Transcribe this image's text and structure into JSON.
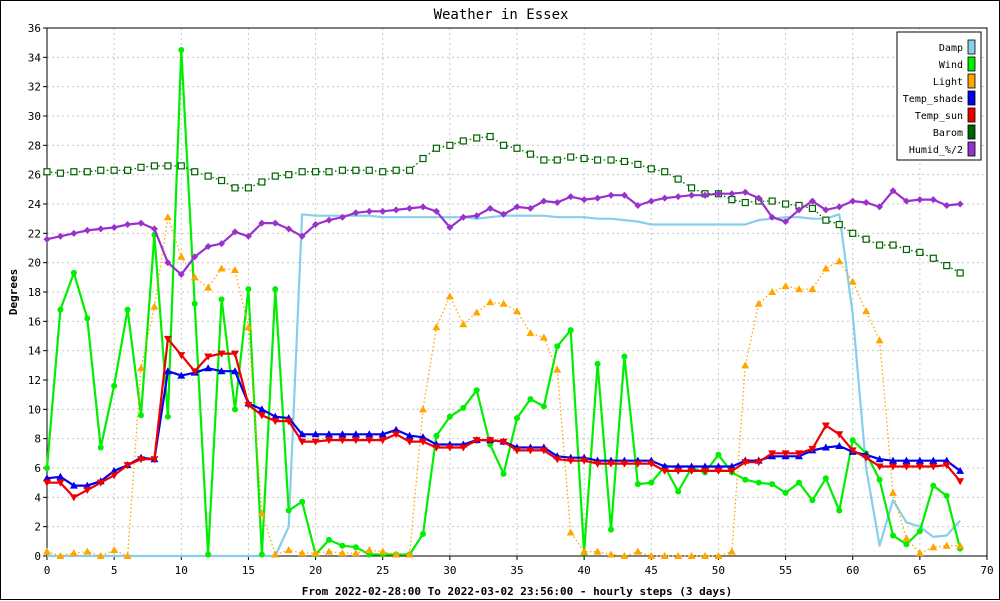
{
  "chart_data": {
    "type": "line",
    "title": "Weather in Essex",
    "xlabel": "From 2022-02-28:00 To 2022-03-02 23:56:00 - hourly steps (3 days)",
    "ylabel": "Degrees",
    "xlim": [
      0,
      70
    ],
    "ylim": [
      0,
      36
    ],
    "xticks": [
      0,
      5,
      10,
      15,
      20,
      25,
      30,
      35,
      40,
      45,
      50,
      55,
      60,
      65,
      70
    ],
    "yticks": [
      0,
      2,
      4,
      6,
      8,
      10,
      12,
      14,
      16,
      18,
      20,
      22,
      24,
      26,
      28,
      30,
      32,
      34,
      36
    ],
    "xtick_labels": [
      "0",
      "5",
      "10",
      "15",
      "20",
      "25",
      "30",
      "35",
      "40",
      "45",
      "50",
      "55",
      "60",
      "65",
      "70"
    ],
    "ytick_labels": [
      "0",
      "2",
      "4",
      "6",
      "8",
      "10",
      "12",
      "14",
      "16",
      "18",
      "20",
      "22",
      "24",
      "26",
      "28",
      "30",
      "32",
      "34",
      "36"
    ],
    "grid": true,
    "legend_position": "top-right",
    "series": [
      {
        "name": "Damp",
        "color": "#87ceeb",
        "style": "solid",
        "marker": "none",
        "x": [
          0,
          1,
          2,
          3,
          4,
          5,
          6,
          7,
          8,
          9,
          10,
          11,
          12,
          13,
          14,
          15,
          16,
          17,
          18,
          19,
          20,
          21,
          22,
          23,
          24,
          25,
          26,
          27,
          28,
          29,
          30,
          31,
          32,
          33,
          34,
          35,
          36,
          37,
          38,
          39,
          40,
          41,
          42,
          43,
          44,
          45,
          46,
          47,
          48,
          49,
          50,
          51,
          52,
          53,
          54,
          55,
          56,
          57,
          58,
          59,
          60,
          61,
          62,
          63,
          64,
          65,
          66,
          67,
          68
        ],
        "y": [
          0,
          0,
          0,
          0,
          0,
          0,
          0,
          0,
          0,
          0,
          0,
          0,
          0,
          0,
          0,
          0,
          0,
          0,
          2.0,
          23.3,
          23.2,
          23.2,
          23.2,
          23.2,
          23.2,
          23.1,
          23.1,
          23.1,
          23.1,
          23.1,
          23.1,
          23.1,
          23.0,
          23.1,
          23.2,
          23.2,
          23.2,
          23.2,
          23.1,
          23.1,
          23.1,
          23.0,
          23.0,
          22.9,
          22.8,
          22.6,
          22.6,
          22.6,
          22.6,
          22.6,
          22.6,
          22.6,
          22.6,
          22.9,
          23.0,
          23.1,
          23.1,
          23.0,
          23.0,
          23.3,
          16.5,
          6.0,
          0.7,
          3.8,
          2.3,
          2.0,
          1.3,
          1.4,
          2.4
        ]
      },
      {
        "name": "Wind",
        "color": "#00ee00",
        "style": "solid",
        "marker": "circle",
        "x": [
          0,
          1,
          2,
          3,
          4,
          5,
          6,
          7,
          8,
          9,
          10,
          11,
          12,
          13,
          14,
          15,
          16,
          17,
          18,
          19,
          20,
          21,
          22,
          23,
          24,
          25,
          26,
          27,
          28,
          29,
          30,
          31,
          32,
          33,
          34,
          35,
          36,
          37,
          38,
          39,
          40,
          41,
          42,
          43,
          44,
          45,
          46,
          47,
          48,
          49,
          50,
          51,
          52,
          53,
          54,
          55,
          56,
          57,
          58,
          59,
          60,
          61,
          62,
          63,
          64,
          65,
          66,
          67,
          68
        ],
        "y": [
          6.0,
          16.8,
          19.3,
          16.2,
          7.4,
          11.6,
          16.8,
          9.6,
          21.9,
          9.5,
          34.5,
          17.2,
          0.1,
          17.5,
          10.0,
          18.2,
          0.1,
          18.2,
          3.1,
          3.7,
          0.1,
          1.1,
          0.7,
          0.6,
          0.1,
          0.1,
          0.1,
          0.1,
          1.5,
          8.2,
          9.5,
          10.1,
          11.3,
          7.6,
          5.6,
          9.4,
          10.7,
          10.2,
          14.3,
          15.4,
          0.2,
          13.1,
          1.8,
          13.6,
          4.9,
          5.0,
          6.1,
          4.4,
          6.0,
          5.7,
          6.9,
          5.7,
          5.2,
          5.0,
          4.9,
          4.3,
          5.0,
          3.8,
          5.3,
          3.1,
          7.9,
          7.0,
          5.2,
          1.4,
          0.8,
          1.7,
          4.8,
          4.1,
          0.5
        ]
      },
      {
        "name": "Light",
        "color": "#ffa500",
        "style": "dotted",
        "marker": "triangle",
        "x": [
          0,
          1,
          2,
          3,
          4,
          5,
          6,
          7,
          8,
          9,
          10,
          11,
          12,
          13,
          14,
          15,
          16,
          17,
          18,
          19,
          20,
          21,
          22,
          23,
          24,
          25,
          26,
          27,
          28,
          29,
          30,
          31,
          32,
          33,
          34,
          35,
          36,
          37,
          38,
          39,
          40,
          41,
          42,
          43,
          44,
          45,
          46,
          47,
          48,
          49,
          50,
          51,
          52,
          53,
          54,
          55,
          56,
          57,
          58,
          59,
          60,
          61,
          62,
          63,
          64,
          65,
          66,
          67,
          68
        ],
        "y": [
          0.3,
          0.0,
          0.2,
          0.3,
          0.0,
          0.4,
          0.0,
          12.8,
          17.0,
          23.1,
          20.4,
          19.0,
          18.3,
          19.6,
          19.5,
          15.6,
          2.9,
          0.1,
          0.4,
          0.2,
          0.2,
          0.3,
          0.2,
          0.2,
          0.4,
          0.3,
          0.1,
          0.1,
          10.0,
          15.6,
          17.7,
          15.8,
          16.6,
          17.3,
          17.2,
          16.7,
          15.2,
          14.9,
          12.7,
          1.6,
          0.3,
          0.3,
          0.1,
          0.0,
          0.3,
          0.0,
          0.0,
          0.0,
          0.0,
          0.0,
          0.0,
          0.3,
          13.0,
          17.2,
          18.0,
          18.4,
          18.2,
          18.2,
          19.6,
          20.1,
          18.7,
          16.7,
          14.7,
          4.3,
          1.2,
          0.2,
          0.6,
          0.7,
          0.7
        ]
      },
      {
        "name": "Temp_shade",
        "color": "#0000ee",
        "style": "solid",
        "marker": "triangle",
        "x": [
          0,
          1,
          2,
          3,
          4,
          5,
          6,
          7,
          8,
          9,
          10,
          11,
          12,
          13,
          14,
          15,
          16,
          17,
          18,
          19,
          20,
          21,
          22,
          23,
          24,
          25,
          26,
          27,
          28,
          29,
          30,
          31,
          32,
          33,
          34,
          35,
          36,
          37,
          38,
          39,
          40,
          41,
          42,
          43,
          44,
          45,
          46,
          47,
          48,
          49,
          50,
          51,
          52,
          53,
          54,
          55,
          56,
          57,
          58,
          59,
          60,
          61,
          62,
          63,
          64,
          65,
          66,
          67,
          68
        ],
        "y": [
          5.3,
          5.4,
          4.8,
          4.8,
          5.1,
          5.8,
          6.2,
          6.7,
          6.6,
          12.6,
          12.3,
          12.5,
          12.8,
          12.6,
          12.6,
          10.4,
          10.0,
          9.5,
          9.4,
          8.3,
          8.3,
          8.3,
          8.3,
          8.3,
          8.3,
          8.3,
          8.6,
          8.2,
          8.1,
          7.6,
          7.6,
          7.6,
          7.9,
          7.9,
          7.8,
          7.4,
          7.4,
          7.4,
          6.8,
          6.7,
          6.7,
          6.5,
          6.5,
          6.5,
          6.5,
          6.5,
          6.1,
          6.1,
          6.1,
          6.1,
          6.1,
          6.1,
          6.5,
          6.5,
          6.8,
          6.8,
          6.8,
          7.2,
          7.4,
          7.5,
          7.1,
          6.9,
          6.6,
          6.5,
          6.5,
          6.5,
          6.5,
          6.5,
          5.8
        ]
      },
      {
        "name": "Temp_sun",
        "color": "#ee0000",
        "style": "solid",
        "marker": "triangle-down",
        "x": [
          0,
          1,
          2,
          3,
          4,
          5,
          6,
          7,
          8,
          9,
          10,
          11,
          12,
          13,
          14,
          15,
          16,
          17,
          18,
          19,
          20,
          21,
          22,
          23,
          24,
          25,
          26,
          27,
          28,
          29,
          30,
          31,
          32,
          33,
          34,
          35,
          36,
          37,
          38,
          39,
          40,
          41,
          42,
          43,
          44,
          45,
          46,
          47,
          48,
          49,
          50,
          51,
          52,
          53,
          54,
          55,
          56,
          57,
          58,
          59,
          60,
          61,
          62,
          63,
          64,
          65,
          66,
          67,
          68
        ],
        "y": [
          5.0,
          5.0,
          4.0,
          4.5,
          5.0,
          5.5,
          6.2,
          6.6,
          6.6,
          14.8,
          13.7,
          12.6,
          13.6,
          13.8,
          13.8,
          10.3,
          9.6,
          9.2,
          9.2,
          7.8,
          7.8,
          7.9,
          7.9,
          7.9,
          7.9,
          7.9,
          8.3,
          7.8,
          7.8,
          7.4,
          7.4,
          7.4,
          7.9,
          7.9,
          7.8,
          7.2,
          7.2,
          7.2,
          6.6,
          6.5,
          6.5,
          6.3,
          6.3,
          6.3,
          6.3,
          6.3,
          5.8,
          5.8,
          5.8,
          5.8,
          5.8,
          5.8,
          6.4,
          6.4,
          7.0,
          7.0,
          7.0,
          7.3,
          8.9,
          8.3,
          7.2,
          6.7,
          6.1,
          6.1,
          6.1,
          6.1,
          6.1,
          6.2,
          5.1
        ]
      },
      {
        "name": "Barom",
        "color": "#006400",
        "style": "dotted",
        "marker": "square",
        "x": [
          0,
          1,
          2,
          3,
          4,
          5,
          6,
          7,
          8,
          9,
          10,
          11,
          12,
          13,
          14,
          15,
          16,
          17,
          18,
          19,
          20,
          21,
          22,
          23,
          24,
          25,
          26,
          27,
          28,
          29,
          30,
          31,
          32,
          33,
          34,
          35,
          36,
          37,
          38,
          39,
          40,
          41,
          42,
          43,
          44,
          45,
          46,
          47,
          48,
          49,
          50,
          51,
          52,
          53,
          54,
          55,
          56,
          57,
          58,
          59,
          60,
          61,
          62,
          63,
          64,
          65,
          66,
          67,
          68
        ],
        "y": [
          26.2,
          26.1,
          26.2,
          26.2,
          26.3,
          26.3,
          26.3,
          26.5,
          26.6,
          26.6,
          26.6,
          26.2,
          25.9,
          25.6,
          25.1,
          25.1,
          25.5,
          25.9,
          26.0,
          26.2,
          26.2,
          26.2,
          26.3,
          26.3,
          26.3,
          26.2,
          26.3,
          26.3,
          27.1,
          27.8,
          28.0,
          28.3,
          28.5,
          28.6,
          28.0,
          27.8,
          27.4,
          27.0,
          27.0,
          27.2,
          27.1,
          27.0,
          27.0,
          26.9,
          26.7,
          26.4,
          26.2,
          25.7,
          25.1,
          24.7,
          24.7,
          24.3,
          24.1,
          24.2,
          24.2,
          24.0,
          23.9,
          23.7,
          22.9,
          22.6,
          22.0,
          21.6,
          21.2,
          21.2,
          20.9,
          20.7,
          20.3,
          19.8,
          19.3
        ]
      },
      {
        "name": "Humid_%/2",
        "color": "#9932cc",
        "style": "solid",
        "marker": "diamond",
        "x": [
          0,
          1,
          2,
          3,
          4,
          5,
          6,
          7,
          8,
          9,
          10,
          11,
          12,
          13,
          14,
          15,
          16,
          17,
          18,
          19,
          20,
          21,
          22,
          23,
          24,
          25,
          26,
          27,
          28,
          29,
          30,
          31,
          32,
          33,
          34,
          35,
          36,
          37,
          38,
          39,
          40,
          41,
          42,
          43,
          44,
          45,
          46,
          47,
          48,
          49,
          50,
          51,
          52,
          53,
          54,
          55,
          56,
          57,
          58,
          59,
          60,
          61,
          62,
          63,
          64,
          65,
          66,
          67,
          68
        ],
        "y": [
          21.6,
          21.8,
          22.0,
          22.2,
          22.3,
          22.4,
          22.6,
          22.7,
          22.3,
          20.0,
          19.2,
          20.4,
          21.1,
          21.3,
          22.1,
          21.8,
          22.7,
          22.7,
          22.3,
          21.8,
          22.6,
          22.9,
          23.1,
          23.4,
          23.5,
          23.5,
          23.6,
          23.7,
          23.8,
          23.5,
          22.4,
          23.1,
          23.2,
          23.7,
          23.3,
          23.8,
          23.7,
          24.2,
          24.1,
          24.5,
          24.3,
          24.4,
          24.6,
          24.6,
          23.9,
          24.2,
          24.4,
          24.5,
          24.6,
          24.6,
          24.7,
          24.7,
          24.8,
          24.4,
          23.1,
          22.8,
          23.6,
          24.2,
          23.6,
          23.8,
          24.2,
          24.1,
          23.8,
          24.9,
          24.2,
          24.3,
          24.3,
          23.9,
          24.0
        ]
      }
    ]
  }
}
